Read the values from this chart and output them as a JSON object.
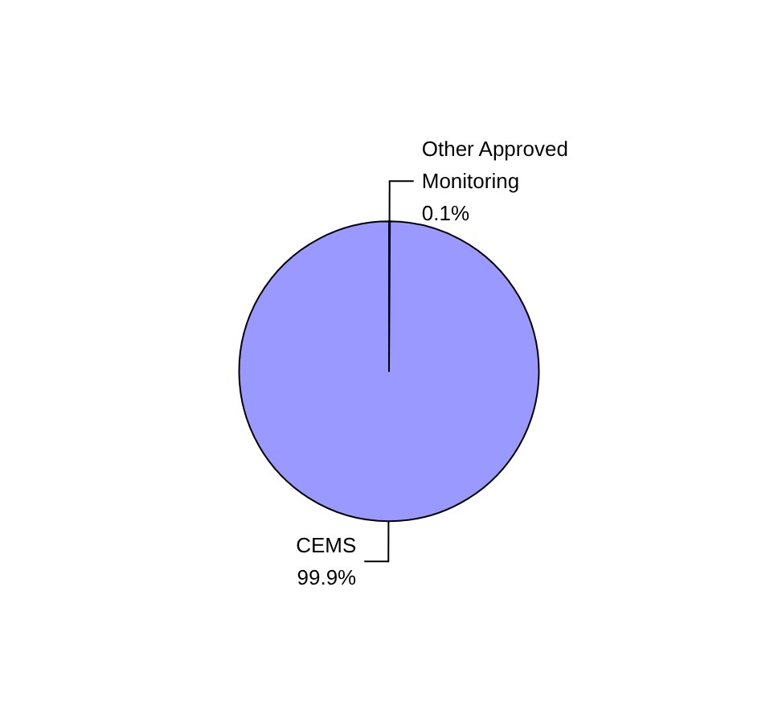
{
  "chart_data": {
    "type": "pie",
    "categories": [
      "Other Approved Monitoring",
      "CEMS"
    ],
    "values": [
      0.1,
      99.9
    ],
    "value_labels": [
      "0.1%",
      "99.9%"
    ],
    "colors": [
      "#993366",
      "#9999ff"
    ]
  }
}
